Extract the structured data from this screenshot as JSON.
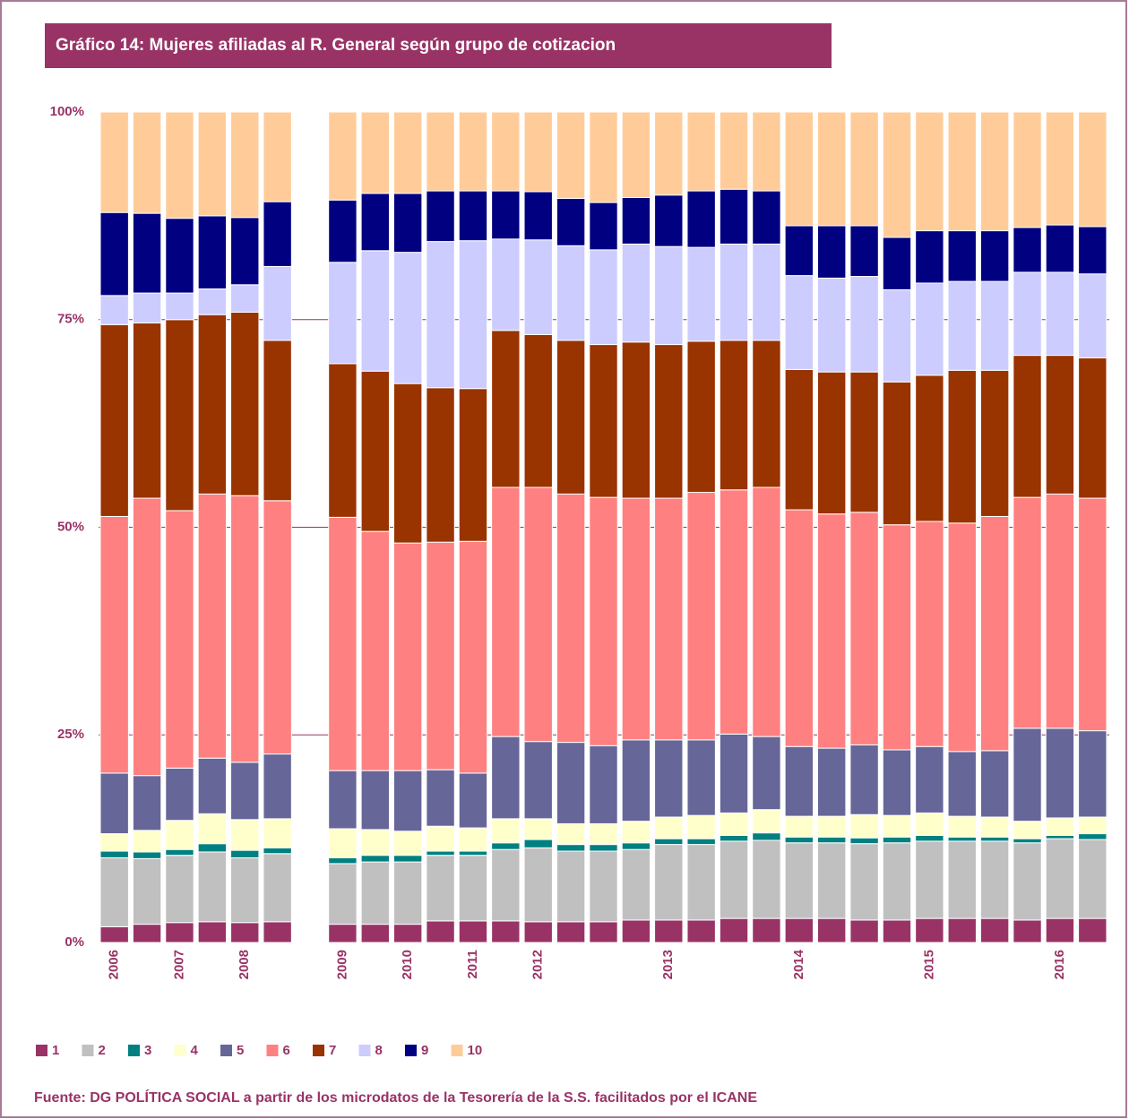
{
  "chart_data": {
    "type": "stacked_bar",
    "title": "Gráfico 14: Mujeres afiliadas al R. General según grupo de cotizacion",
    "source": "Fuente: DG POLÍTICA SOCIAL a partir de los microdatos de la Tesorería de la S.S. facilitados por el ICANE",
    "categories": [
      "2006",
      null,
      "2007",
      null,
      "2008",
      null,
      null,
      "2009",
      null,
      "2010",
      null,
      "2011",
      null,
      "2012",
      null,
      null,
      null,
      "2013",
      null,
      null,
      null,
      "2014",
      null,
      null,
      null,
      "2015",
      null,
      null,
      null,
      "2016",
      null
    ],
    "series": [
      {
        "name": "1",
        "color": "#993366",
        "values": [
          1.9,
          2.2,
          2.4,
          2.5,
          2.4,
          2.5,
          null,
          2.2,
          2.2,
          2.2,
          2.6,
          2.6,
          2.6,
          2.5,
          2.5,
          2.5,
          2.7,
          2.7,
          2.7,
          2.9,
          2.9,
          2.9,
          2.9,
          2.7,
          2.7,
          2.9,
          2.9,
          2.9,
          2.7,
          2.9,
          2.9
        ]
      },
      {
        "name": "2",
        "color": "#c0c0c0",
        "values": [
          8.3,
          7.9,
          8.1,
          8.4,
          7.8,
          8.2,
          null,
          7.3,
          7.5,
          7.5,
          7.9,
          7.9,
          8.6,
          8.9,
          8.5,
          8.5,
          8.5,
          9.1,
          9.1,
          9.3,
          9.4,
          9.1,
          9.1,
          9.2,
          9.3,
          9.3,
          9.3,
          9.3,
          9.3,
          9.6,
          9.5
        ]
      },
      {
        "name": "3",
        "color": "#008080",
        "values": [
          0.8,
          0.8,
          0.7,
          1.0,
          0.9,
          0.7,
          null,
          0.7,
          0.8,
          0.8,
          0.5,
          0.5,
          0.8,
          1.0,
          0.8,
          0.8,
          0.8,
          0.7,
          0.7,
          0.7,
          0.9,
          0.7,
          0.7,
          0.7,
          0.7,
          0.7,
          0.5,
          0.5,
          0.5,
          0.4,
          0.7
        ]
      },
      {
        "name": "4",
        "color": "#ffffcc",
        "values": [
          2.1,
          2.6,
          3.5,
          3.6,
          3.7,
          3.5,
          null,
          3.5,
          3.1,
          2.9,
          3.0,
          2.8,
          2.9,
          2.5,
          2.5,
          2.5,
          2.6,
          2.6,
          2.8,
          2.7,
          2.8,
          2.5,
          2.5,
          2.8,
          2.6,
          2.7,
          2.5,
          2.4,
          2.1,
          2.1,
          2.0
        ]
      },
      {
        "name": "5",
        "color": "#666699",
        "values": [
          7.3,
          6.6,
          6.3,
          6.7,
          6.9,
          7.8,
          null,
          7.0,
          7.1,
          7.3,
          6.8,
          6.6,
          9.9,
          9.3,
          9.8,
          9.4,
          9.8,
          9.3,
          9.1,
          9.5,
          8.8,
          8.4,
          8.2,
          8.4,
          7.9,
          8.0,
          7.8,
          8.0,
          11.2,
          10.8,
          10.4
        ]
      },
      {
        "name": "6",
        "color": "#ff8080",
        "values": [
          30.9,
          33.4,
          31.0,
          31.8,
          32.1,
          30.5,
          null,
          30.5,
          28.8,
          27.4,
          27.4,
          27.9,
          30.0,
          30.6,
          29.9,
          29.9,
          29.1,
          29.1,
          29.8,
          29.4,
          30.0,
          28.5,
          28.2,
          28.0,
          27.1,
          27.1,
          27.5,
          28.2,
          27.8,
          28.2,
          28.0
        ]
      },
      {
        "name": "7",
        "color": "#993300",
        "values": [
          23.1,
          21.1,
          23.0,
          21.6,
          22.1,
          19.3,
          null,
          18.5,
          19.3,
          19.2,
          18.6,
          18.4,
          18.9,
          18.4,
          18.5,
          18.4,
          18.8,
          18.5,
          18.2,
          18.0,
          17.7,
          16.9,
          17.1,
          16.9,
          17.2,
          17.6,
          18.4,
          17.6,
          17.1,
          16.7,
          16.9
        ]
      },
      {
        "name": "8",
        "color": "#ccccff",
        "values": [
          3.5,
          3.6,
          3.2,
          3.1,
          3.3,
          8.9,
          null,
          12.2,
          14.5,
          15.8,
          17.6,
          17.8,
          11.0,
          11.4,
          11.4,
          11.4,
          11.8,
          11.8,
          11.3,
          11.6,
          11.6,
          11.3,
          11.3,
          11.5,
          11.1,
          11.1,
          10.7,
          10.7,
          10.0,
          10.0,
          10.1
        ]
      },
      {
        "name": "9",
        "color": "#000080",
        "values": [
          10.0,
          9.6,
          9.0,
          8.8,
          8.1,
          7.8,
          null,
          7.5,
          6.9,
          7.1,
          6.1,
          6.0,
          5.8,
          5.8,
          5.7,
          5.7,
          5.6,
          6.2,
          6.8,
          6.6,
          6.4,
          6.0,
          6.3,
          6.1,
          6.3,
          6.3,
          6.1,
          6.1,
          5.4,
          5.7,
          5.7
        ]
      },
      {
        "name": "10",
        "color": "#ffcc99",
        "values": [
          12.1,
          12.2,
          12.8,
          12.5,
          12.7,
          10.8,
          null,
          10.6,
          9.8,
          9.8,
          9.5,
          9.5,
          9.5,
          9.6,
          10.4,
          10.9,
          10.3,
          10.0,
          9.5,
          9.3,
          9.5,
          13.7,
          13.7,
          13.7,
          15.1,
          14.3,
          14.3,
          14.3,
          13.9,
          13.6,
          13.8
        ]
      }
    ],
    "ylim": [
      0,
      100
    ],
    "yticks": [
      {
        "value": 0,
        "label": "0%"
      },
      {
        "value": 25,
        "label": "25%"
      },
      {
        "value": 50,
        "label": "50%"
      },
      {
        "value": 75,
        "label": "75%"
      },
      {
        "value": 100,
        "label": "100%"
      }
    ],
    "grid": true,
    "grid_color": "#993366",
    "text_color": "#993366",
    "legend": "bottom-left"
  }
}
